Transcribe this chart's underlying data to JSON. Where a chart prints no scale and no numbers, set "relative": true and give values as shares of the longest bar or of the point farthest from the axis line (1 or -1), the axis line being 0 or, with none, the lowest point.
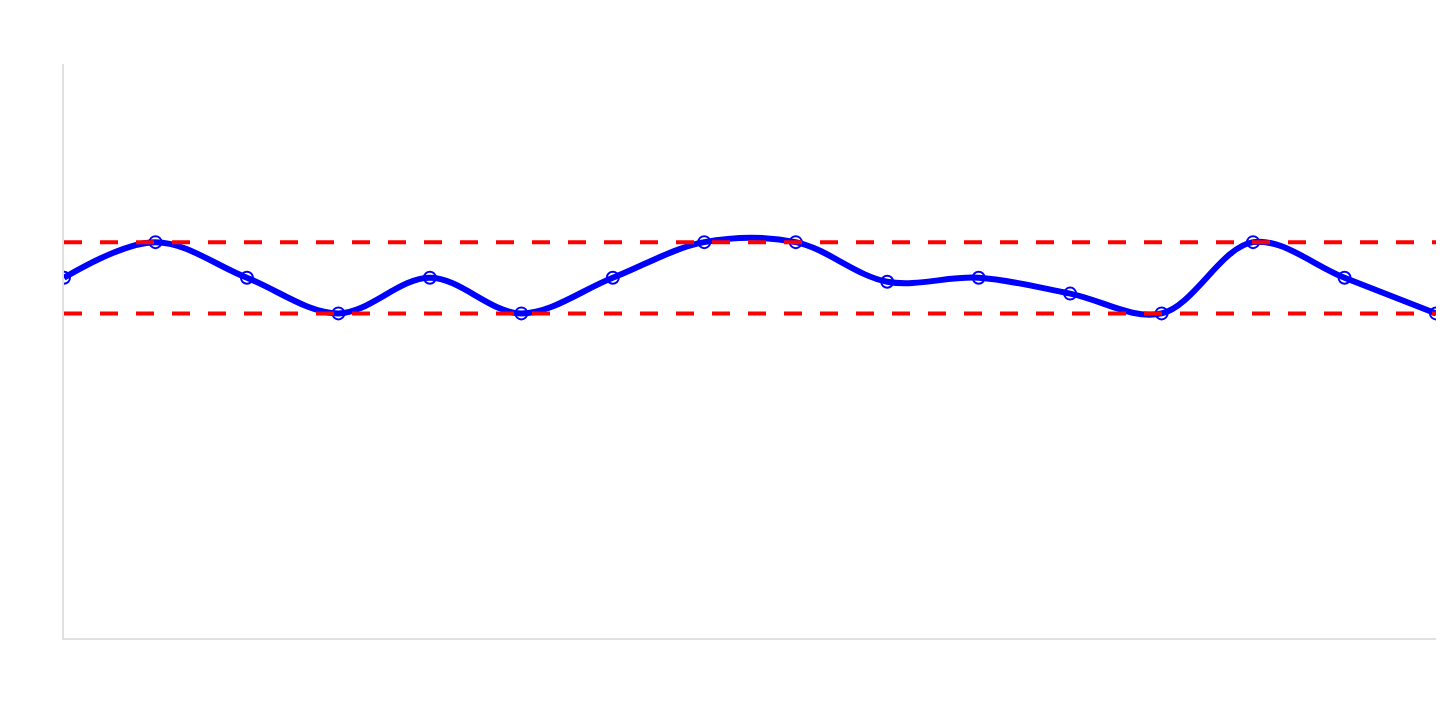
{
  "chart_data": {
    "type": "line",
    "relative": true,
    "categories": [
      null,
      null,
      null,
      null,
      null,
      null,
      null,
      null,
      null,
      null,
      null,
      null,
      null,
      null,
      null,
      null
    ],
    "series": [
      {
        "color": "#0000ff",
        "values": [
          0.91,
          1.0,
          0.91,
          0.82,
          0.91,
          0.82,
          0.91,
          1.0,
          1.0,
          0.9,
          0.91,
          0.87,
          0.82,
          1.0,
          0.91,
          0.82
        ]
      }
    ],
    "ref_lines": [
      {
        "axis": "y",
        "value": 1.0,
        "color": "#ff0000",
        "line_style": "dashed"
      },
      {
        "axis": "y",
        "value": 0.82,
        "color": "#ff0000",
        "line_style": "dashed"
      }
    ],
    "marker": "circle",
    "line_style": "solid",
    "legend": false
  }
}
